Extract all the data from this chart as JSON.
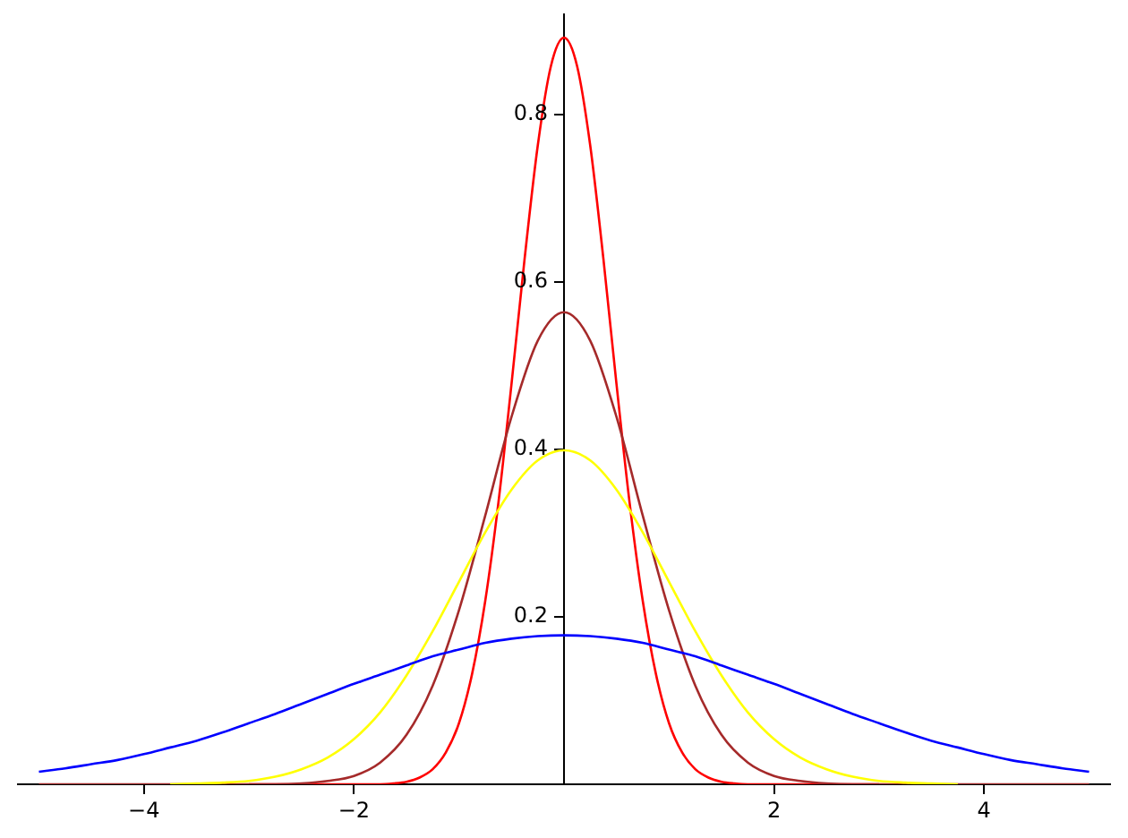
{
  "chart_data": {
    "type": "line",
    "x": [
      -5,
      -4.75,
      -4.5,
      -4.25,
      -4,
      -3.75,
      -3.5,
      -3.25,
      -3,
      -2.75,
      -2.5,
      -2.25,
      -2,
      -1.75,
      -1.5,
      -1.25,
      -1,
      -0.75,
      -0.5,
      -0.25,
      0,
      0.25,
      0.5,
      0.75,
      1,
      1.25,
      1.5,
      1.75,
      2,
      2.25,
      2.5,
      2.75,
      3,
      3.25,
      3.5,
      3.75,
      4,
      4.25,
      4.5,
      4.75,
      5
    ],
    "series": [
      {
        "color": "#0000ff",
        "values": [
          0.015,
          0.019,
          0.024,
          0.029,
          0.036,
          0.044,
          0.052,
          0.062,
          0.073,
          0.084,
          0.096,
          0.108,
          0.12,
          0.131,
          0.142,
          0.153,
          0.161,
          0.169,
          0.174,
          0.177,
          0.178,
          0.177,
          0.174,
          0.169,
          0.161,
          0.153,
          0.142,
          0.131,
          0.12,
          0.108,
          0.096,
          0.084,
          0.073,
          0.062,
          0.052,
          0.044,
          0.036,
          0.029,
          0.024,
          0.019,
          0.015
        ]
      },
      {
        "color": "#ffff00",
        "values": [
          null,
          null,
          null,
          null,
          null,
          0,
          0.001,
          0.002,
          0.004,
          0.009,
          0.018,
          0.032,
          0.054,
          0.086,
          0.13,
          0.183,
          0.242,
          0.301,
          0.352,
          0.387,
          0.399,
          0.387,
          0.352,
          0.301,
          0.242,
          0.183,
          0.13,
          0.086,
          0.054,
          0.032,
          0.018,
          0.009,
          0.004,
          0.002,
          0.001,
          0,
          null,
          null,
          null,
          null,
          null
        ]
      },
      {
        "color": "#a52a2a",
        "values": [
          0,
          0,
          0,
          0,
          0,
          0,
          0,
          0,
          0,
          0,
          0.001,
          0.004,
          0.01,
          0.026,
          0.059,
          0.118,
          0.208,
          0.321,
          0.439,
          0.53,
          0.564,
          0.53,
          0.439,
          0.321,
          0.208,
          0.118,
          0.059,
          0.026,
          0.01,
          0.004,
          0.001,
          0,
          0,
          0,
          0,
          0,
          0,
          0,
          0,
          0,
          0
        ]
      },
      {
        "color": "#ff0000",
        "x": [
          -3,
          -2,
          -1.875,
          -1.75,
          -1.625,
          -1.5,
          -1.375,
          -1.25,
          -1.125,
          -1,
          -0.875,
          -0.75,
          -0.625,
          -0.5,
          -0.375,
          -0.25,
          -0.125,
          0,
          0.125,
          0.25,
          0.375,
          0.5,
          0.625,
          0.75,
          0.875,
          1,
          1.125,
          1.25,
          1.375,
          1.5,
          1.625,
          1.75,
          1.875,
          2,
          3
        ],
        "values": [
          0,
          0,
          0,
          0,
          0.001,
          0.003,
          0.008,
          0.018,
          0.038,
          0.073,
          0.132,
          0.219,
          0.336,
          0.478,
          0.628,
          0.763,
          0.858,
          0.892,
          0.858,
          0.763,
          0.628,
          0.478,
          0.336,
          0.219,
          0.132,
          0.073,
          0.038,
          0.018,
          0.008,
          0.003,
          0.001,
          0,
          0,
          0,
          0
        ]
      }
    ],
    "xlim": [
      -5.2,
      5.2
    ],
    "ylim": [
      0,
      0.92
    ],
    "xticks": [
      {
        "value": -4,
        "label": "−4"
      },
      {
        "value": -2,
        "label": "−2"
      },
      2,
      4
    ],
    "yticks": [
      0.2,
      0.4,
      0.6,
      0.8
    ],
    "grid": false,
    "legend": false
  }
}
